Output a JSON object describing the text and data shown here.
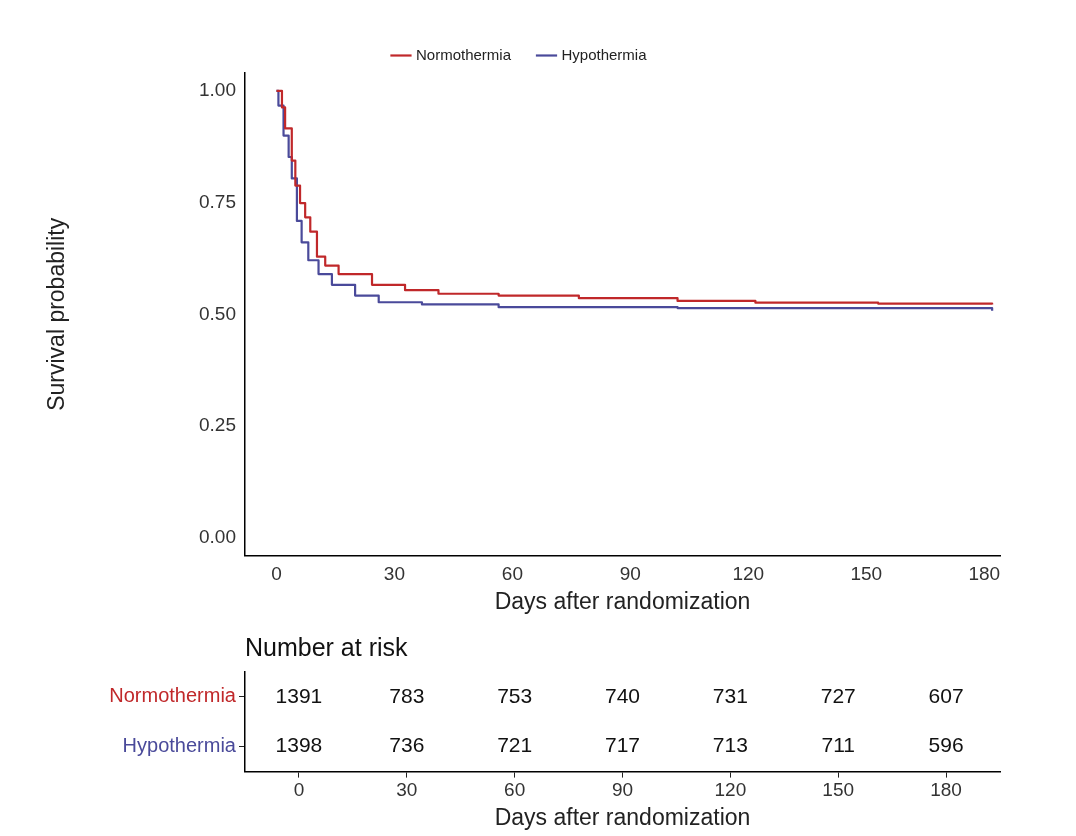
{
  "chart_data": [
    {
      "type": "step",
      "ylabel": "Survival probability",
      "xlabel": "Days after randomization",
      "legend": "top",
      "marker": "none",
      "xlim": [
        -8,
        184
      ],
      "xticks": [
        0,
        30,
        60,
        90,
        120,
        150,
        180
      ],
      "ylim": [
        -0.04,
        1.04
      ],
      "yticks": [
        {
          "value": 0,
          "label": "0.00"
        },
        {
          "value": 0.25,
          "label": "0.25"
        },
        {
          "value": 0.5,
          "label": "0.50"
        },
        {
          "value": 0.75,
          "label": "0.75"
        },
        {
          "value": 1,
          "label": "1.00"
        }
      ],
      "series": [
        {
          "name": "Normothermia",
          "color": "#c0282a",
          "x": [
            0,
            1.4,
            2.2,
            3.9,
            4.8,
            6.0,
            7.3,
            8.6,
            10.3,
            12.4,
            15.8,
            24.3,
            32.7,
            41.2,
            56.5,
            76.9,
            102,
            121.8,
            153,
            182
          ],
          "values": [
            1.0,
            0.963,
            0.916,
            0.844,
            0.788,
            0.749,
            0.717,
            0.685,
            0.629,
            0.609,
            0.59,
            0.566,
            0.554,
            0.546,
            0.542,
            0.536,
            0.53,
            0.526,
            0.524,
            0.522
          ]
        },
        {
          "name": "Hypothermia",
          "color": "#4a4a9a",
          "x": [
            0,
            0.5,
            1.8,
            3.1,
            3.9,
            5.2,
            6.4,
            8.1,
            10.7,
            14.1,
            20,
            26,
            37,
            56.5,
            102,
            182
          ],
          "values": [
            1.0,
            0.967,
            0.9,
            0.852,
            0.804,
            0.709,
            0.661,
            0.621,
            0.59,
            0.566,
            0.542,
            0.527,
            0.522,
            0.516,
            0.514,
            0.508
          ]
        }
      ]
    },
    {
      "type": "heatmap",
      "title": "Number at risk",
      "xlabel": "Days after randomization",
      "data_labels": true,
      "categories": [
        "0",
        "30",
        "60",
        "90",
        "120",
        "150",
        "180"
      ],
      "y_categories": [
        "Normothermia",
        "Hypothermia"
      ],
      "cells": [
        [
          1391,
          783,
          753,
          740,
          731,
          727,
          607
        ],
        [
          1398,
          736,
          721,
          717,
          713,
          711,
          596
        ]
      ]
    }
  ]
}
